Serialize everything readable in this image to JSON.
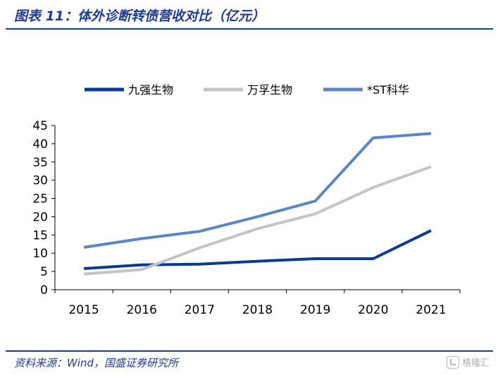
{
  "header": {
    "title": "图表 11：体外诊断转债营收对比（亿元）"
  },
  "footer": {
    "source": "资料来源：Wind，国盛证券研究所",
    "watermark": "格隆汇"
  },
  "colors": {
    "brand": "#1f3a93"
  },
  "chart_data": {
    "type": "line",
    "title": "",
    "xlabel": "",
    "ylabel": "",
    "x": [
      "2015",
      "2016",
      "2017",
      "2018",
      "2019",
      "2020",
      "2021"
    ],
    "ylim": [
      0,
      45
    ],
    "yticks": [
      0,
      5,
      10,
      15,
      20,
      25,
      30,
      35,
      40,
      45
    ],
    "grid": false,
    "legend": "top",
    "series": [
      {
        "name": "九强生物",
        "color": "#0b3a96",
        "values": [
          5.8,
          6.8,
          7.0,
          7.8,
          8.5,
          8.5,
          16.2
        ]
      },
      {
        "name": "万孚生物",
        "color": "#c4c4c4",
        "values": [
          4.3,
          5.5,
          11.5,
          16.7,
          20.8,
          28.0,
          33.7
        ]
      },
      {
        "name": "*ST科华",
        "color": "#5b86c4",
        "values": [
          11.6,
          14.0,
          16.0,
          20.0,
          24.3,
          41.6,
          42.8
        ]
      }
    ]
  }
}
